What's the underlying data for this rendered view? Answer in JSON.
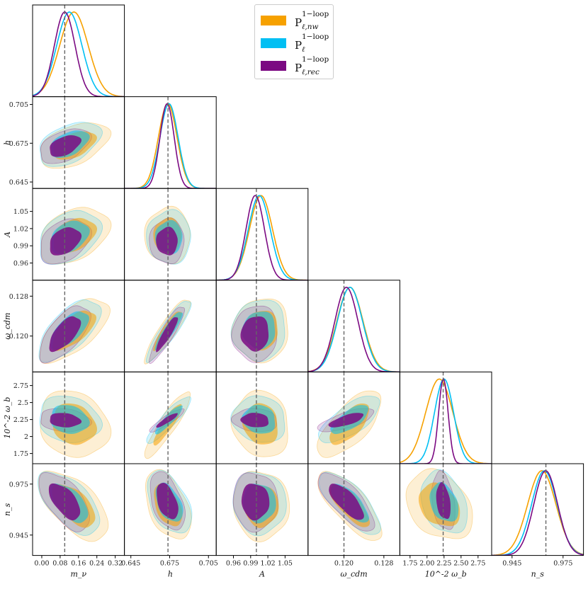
{
  "chart_data": {
    "type": "corner",
    "title": "",
    "parameters": [
      {
        "key": "mnu",
        "label": "m_ν",
        "fiducial": 0.1,
        "range": [
          -0.04,
          0.36
        ],
        "ticks": [
          "0.00",
          "0.08",
          "0.16",
          "0.24",
          "0.32"
        ],
        "tick_values": [
          0.0,
          0.08,
          0.16,
          0.24,
          0.32
        ]
      },
      {
        "key": "h",
        "label": "h",
        "fiducial": 0.6737,
        "range": [
          0.64,
          0.711
        ],
        "ticks": [
          "0.645",
          "0.675",
          "0.705"
        ],
        "tick_values": [
          0.645,
          0.675,
          0.705
        ]
      },
      {
        "key": "A",
        "label": "A",
        "fiducial": 1.0,
        "range": [
          0.93,
          1.09
        ],
        "ticks": [
          "0.96",
          "0.99",
          "1.02",
          "1.05"
        ],
        "tick_values": [
          0.96,
          0.99,
          1.02,
          1.05
        ]
      },
      {
        "key": "wcdm",
        "label": "ω_cdm",
        "fiducial": 0.12,
        "range": [
          0.1128,
          0.1312
        ],
        "ticks": [
          "0.120",
          "0.128"
        ],
        "tick_values": [
          0.12,
          0.128
        ]
      },
      {
        "key": "wb",
        "label": "10^-2 ω_b",
        "fiducial": 2.237,
        "range": [
          1.6,
          2.95
        ],
        "ticks": [
          "1.75",
          "2",
          "2.25",
          "2.5",
          "2.75"
        ],
        "tick_values": [
          1.75,
          2.0,
          2.25,
          2.5,
          2.75
        ]
      },
      {
        "key": "ns",
        "label": "n_s",
        "fiducial": 0.9649,
        "range": [
          0.933,
          0.987
        ],
        "ticks": [
          "0.945",
          "0.975"
        ],
        "tick_values": [
          0.945,
          0.975
        ]
      }
    ],
    "x_tick_labels": {
      "mnu": [
        "0.00",
        "0.08",
        "0.16",
        "0.24",
        "0.32"
      ],
      "h": [
        "0.645",
        "0.675",
        "0.705"
      ],
      "A": [
        "0.96",
        "0.99",
        "1.02",
        "1.05"
      ],
      "wcdm": [
        "0.120",
        "0.128"
      ],
      "wb": [
        "1.75",
        "2.00",
        "2.25",
        "2.50",
        "2.75"
      ],
      "ns": [
        "0.945",
        "0.975"
      ]
    },
    "y_tick_labels": {
      "h": [
        "0.645",
        "0.675",
        "0.705"
      ],
      "A": [
        "0.96",
        "0.99",
        "1.02",
        "1.05"
      ],
      "wcdm": [
        "0.120",
        "0.128"
      ],
      "wb": [
        "1.75",
        "2",
        "2.25",
        "2.5",
        "2.75"
      ],
      "ns": [
        "0.945",
        "0.975"
      ]
    },
    "series": [
      {
        "name": "P_{ℓ,nw}^{1-loop}",
        "legend_main": "P",
        "legend_sup": "1−loop",
        "legend_sub": "ℓ,nw",
        "color": "#f6a100",
        "means": {
          "mnu": 0.14,
          "h": 0.6735,
          "A": 1.008,
          "wcdm": 0.1212,
          "wb": 2.18,
          "ns": 0.9625
        },
        "sigmas": {
          "mnu": 0.062,
          "h": 0.0072,
          "A": 0.02,
          "wcdm": 0.0026,
          "wb": 0.2,
          "ns": 0.0083
        }
      },
      {
        "name": "P_{ℓ}^{1-loop}",
        "legend_main": "P",
        "legend_sup": "1−loop",
        "legend_sub": "ℓ",
        "color": "#00bff3",
        "means": {
          "mnu": 0.12,
          "h": 0.6745,
          "A": 1.005,
          "wcdm": 0.1212,
          "wb": 2.25,
          "ns": 0.964
        },
        "sigmas": {
          "mnu": 0.055,
          "h": 0.007,
          "A": 0.019,
          "wcdm": 0.0025,
          "wb": 0.14,
          "ns": 0.0075
        }
      },
      {
        "name": "P_{ℓ,rec}^{1-loop}",
        "legend_main": "P",
        "legend_sup": "1−loop",
        "legend_sub": "ℓ,rec",
        "color": "#7b0a82",
        "means": {
          "mnu": 0.1,
          "h": 0.673,
          "A": 0.998,
          "wcdm": 0.1205,
          "wb": 2.24,
          "ns": 0.9648
        },
        "sigmas": {
          "mnu": 0.045,
          "h": 0.0055,
          "A": 0.016,
          "wcdm": 0.0023,
          "wb": 0.07,
          "ns": 0.007
        }
      }
    ],
    "correlations": {
      "h|mnu": 0.45,
      "A|mnu": 0.35,
      "A|h": 0.0,
      "wcdm|mnu": 0.65,
      "wcdm|h": 0.9,
      "wcdm|A": 0.05,
      "wb|mnu": -0.15,
      "wb|h": 0.9,
      "wb|A": -0.1,
      "wb|wcdm": 0.7,
      "ns|mnu": -0.6,
      "ns|h": -0.45,
      "ns|A": -0.05,
      "ns|wcdm": -0.75,
      "ns|wb": -0.3
    },
    "contour_levels": [
      "68%",
      "95%"
    ],
    "reference_lines": "dashed grey at fiducial values",
    "legend_position": "top-center"
  }
}
